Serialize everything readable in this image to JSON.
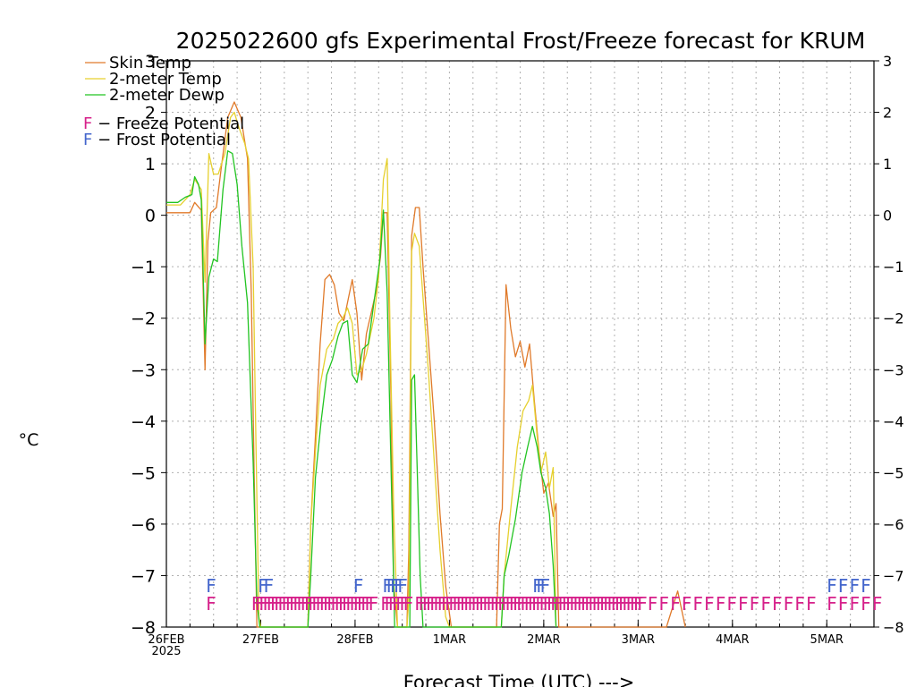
{
  "chart_data": {
    "type": "line",
    "title": "2025022600 gfs Experimental Frost/Freeze forecast for KRUM",
    "ylabel": "°C",
    "xlabel": "Forecast Time (UTC) --->",
    "xlim": [
      0,
      7.5
    ],
    "ylim": [
      -8,
      3
    ],
    "yticks": [
      3,
      2,
      1,
      0,
      -1,
      -2,
      -3,
      -4,
      -5,
      -6,
      -7,
      -8
    ],
    "ytick_labels": [
      "3",
      "2",
      "1",
      "0",
      "−1",
      "−2",
      "−3",
      "−4",
      "−5",
      "−6",
      "−7",
      "−8"
    ],
    "xticks": [
      {
        "x": 0,
        "label": "26FEB",
        "sublabel": "2025"
      },
      {
        "x": 1,
        "label": "27FEB"
      },
      {
        "x": 2,
        "label": "28FEB"
      },
      {
        "x": 3,
        "label": "1MAR"
      },
      {
        "x": 4,
        "label": "2MAR"
      },
      {
        "x": 5,
        "label": "3MAR"
      },
      {
        "x": 6,
        "label": "4MAR"
      },
      {
        "x": 7,
        "label": "5MAR"
      }
    ],
    "grid": true,
    "legend_position": "top-left",
    "series": [
      {
        "name": "Skin Temp",
        "color": "#e07a2a",
        "points": [
          [
            0.0,
            0.05
          ],
          [
            0.25,
            0.05
          ],
          [
            0.3,
            0.25
          ],
          [
            0.37,
            0.1
          ],
          [
            0.41,
            -3.0
          ],
          [
            0.44,
            -0.5
          ],
          [
            0.47,
            0.05
          ],
          [
            0.53,
            0.15
          ],
          [
            0.58,
            0.9
          ],
          [
            0.65,
            1.9
          ],
          [
            0.72,
            2.2
          ],
          [
            0.79,
            1.9
          ],
          [
            0.86,
            1.1
          ],
          [
            0.9,
            -1.5
          ],
          [
            0.93,
            -5.0
          ],
          [
            0.96,
            -8.3
          ],
          [
            1.5,
            -8.3
          ],
          [
            1.53,
            -6.0
          ],
          [
            1.58,
            -4.3
          ],
          [
            1.63,
            -2.5
          ],
          [
            1.68,
            -1.25
          ],
          [
            1.73,
            -1.15
          ],
          [
            1.78,
            -1.35
          ],
          [
            1.83,
            -1.9
          ],
          [
            1.88,
            -2.05
          ],
          [
            1.93,
            -1.6
          ],
          [
            1.97,
            -1.25
          ],
          [
            2.02,
            -1.9
          ],
          [
            2.07,
            -3.2
          ],
          [
            2.12,
            -2.3
          ],
          [
            2.17,
            -1.9
          ],
          [
            2.22,
            -1.5
          ],
          [
            2.27,
            -0.8
          ],
          [
            2.3,
            0.05
          ],
          [
            2.34,
            0.05
          ],
          [
            2.38,
            -3.5
          ],
          [
            2.41,
            -7.2
          ],
          [
            2.45,
            -8.3
          ],
          [
            2.55,
            -8.3
          ],
          [
            2.57,
            -6.5
          ],
          [
            2.6,
            -0.4
          ],
          [
            2.64,
            0.15
          ],
          [
            2.68,
            0.15
          ],
          [
            2.72,
            -1.0
          ],
          [
            2.78,
            -2.5
          ],
          [
            2.84,
            -4.0
          ],
          [
            2.9,
            -5.8
          ],
          [
            2.96,
            -7.2
          ],
          [
            3.02,
            -8.3
          ],
          [
            3.5,
            -8.3
          ],
          [
            3.53,
            -6.0
          ],
          [
            3.56,
            -5.7
          ],
          [
            3.6,
            -1.35
          ],
          [
            3.65,
            -2.2
          ],
          [
            3.7,
            -2.75
          ],
          [
            3.75,
            -2.45
          ],
          [
            3.8,
            -2.95
          ],
          [
            3.85,
            -2.5
          ],
          [
            3.9,
            -3.6
          ],
          [
            3.95,
            -4.6
          ],
          [
            4.0,
            -5.4
          ],
          [
            4.05,
            -5.2
          ],
          [
            4.1,
            -5.85
          ],
          [
            4.13,
            -5.6
          ],
          [
            4.16,
            -8.3
          ],
          [
            5.3,
            -8.3
          ],
          [
            5.42,
            -7.3
          ],
          [
            5.5,
            -8.3
          ]
        ]
      },
      {
        "name": "2-meter Temp",
        "color": "#e6d02e",
        "points": [
          [
            0.0,
            0.2
          ],
          [
            0.15,
            0.2
          ],
          [
            0.25,
            0.4
          ],
          [
            0.3,
            0.7
          ],
          [
            0.37,
            0.5
          ],
          [
            0.41,
            -1.3
          ],
          [
            0.45,
            1.2
          ],
          [
            0.5,
            0.8
          ],
          [
            0.55,
            0.8
          ],
          [
            0.62,
            1.2
          ],
          [
            0.68,
            1.9
          ],
          [
            0.72,
            2.0
          ],
          [
            0.77,
            1.7
          ],
          [
            0.83,
            1.4
          ],
          [
            0.87,
            1.1
          ],
          [
            0.92,
            -1.0
          ],
          [
            0.95,
            -4.5
          ],
          [
            0.98,
            -7.8
          ],
          [
            1.0,
            -8.3
          ],
          [
            1.5,
            -8.3
          ],
          [
            1.53,
            -6.0
          ],
          [
            1.58,
            -4.6
          ],
          [
            1.63,
            -3.3
          ],
          [
            1.7,
            -2.6
          ],
          [
            1.77,
            -2.4
          ],
          [
            1.82,
            -2.1
          ],
          [
            1.87,
            -2.0
          ],
          [
            1.92,
            -1.8
          ],
          [
            1.97,
            -2.1
          ],
          [
            2.02,
            -3.1
          ],
          [
            2.07,
            -3.0
          ],
          [
            2.12,
            -2.7
          ],
          [
            2.2,
            -2.0
          ],
          [
            2.25,
            -1.2
          ],
          [
            2.3,
            0.7
          ],
          [
            2.34,
            1.1
          ],
          [
            2.37,
            -2.2
          ],
          [
            2.41,
            -5.8
          ],
          [
            2.45,
            -8.3
          ],
          [
            2.55,
            -8.3
          ],
          [
            2.57,
            -7.5
          ],
          [
            2.6,
            -0.7
          ],
          [
            2.63,
            -0.35
          ],
          [
            2.68,
            -0.6
          ],
          [
            2.72,
            -1.6
          ],
          [
            2.78,
            -3.1
          ],
          [
            2.84,
            -4.8
          ],
          [
            2.9,
            -6.5
          ],
          [
            2.96,
            -7.8
          ],
          [
            3.0,
            -8.3
          ],
          [
            3.55,
            -8.3
          ],
          [
            3.58,
            -7.0
          ],
          [
            3.65,
            -5.7
          ],
          [
            3.72,
            -4.5
          ],
          [
            3.78,
            -3.8
          ],
          [
            3.84,
            -3.6
          ],
          [
            3.88,
            -3.3
          ],
          [
            3.93,
            -4.3
          ],
          [
            3.97,
            -5.0
          ],
          [
            4.02,
            -4.6
          ],
          [
            4.06,
            -5.3
          ],
          [
            4.1,
            -4.9
          ],
          [
            4.13,
            -8.3
          ]
        ]
      },
      {
        "name": "2-meter Dewp",
        "color": "#22c422",
        "points": [
          [
            0.0,
            0.25
          ],
          [
            0.12,
            0.25
          ],
          [
            0.2,
            0.35
          ],
          [
            0.27,
            0.4
          ],
          [
            0.3,
            0.75
          ],
          [
            0.34,
            0.6
          ],
          [
            0.37,
            0.3
          ],
          [
            0.41,
            -2.5
          ],
          [
            0.45,
            -1.2
          ],
          [
            0.5,
            -0.85
          ],
          [
            0.54,
            -0.9
          ],
          [
            0.6,
            0.5
          ],
          [
            0.65,
            1.25
          ],
          [
            0.7,
            1.2
          ],
          [
            0.75,
            0.6
          ],
          [
            0.8,
            -0.6
          ],
          [
            0.86,
            -1.7
          ],
          [
            0.92,
            -4.8
          ],
          [
            0.96,
            -7.5
          ],
          [
            0.99,
            -8.3
          ],
          [
            1.5,
            -8.3
          ],
          [
            1.53,
            -7.0
          ],
          [
            1.58,
            -5.1
          ],
          [
            1.64,
            -4.0
          ],
          [
            1.7,
            -3.1
          ],
          [
            1.76,
            -2.8
          ],
          [
            1.82,
            -2.35
          ],
          [
            1.87,
            -2.1
          ],
          [
            1.92,
            -2.05
          ],
          [
            1.97,
            -3.1
          ],
          [
            2.02,
            -3.25
          ],
          [
            2.08,
            -2.6
          ],
          [
            2.14,
            -2.5
          ],
          [
            2.2,
            -1.7
          ],
          [
            2.26,
            -0.9
          ],
          [
            2.3,
            0.1
          ],
          [
            2.34,
            -1.5
          ],
          [
            2.38,
            -4.8
          ],
          [
            2.42,
            -8.3
          ],
          [
            2.55,
            -8.3
          ],
          [
            2.58,
            -8.3
          ],
          [
            2.6,
            -3.2
          ],
          [
            2.63,
            -3.1
          ],
          [
            2.66,
            -5.0
          ],
          [
            2.69,
            -7.0
          ],
          [
            2.72,
            -8.3
          ],
          [
            3.55,
            -8.3
          ],
          [
            3.58,
            -7.0
          ],
          [
            3.63,
            -6.6
          ],
          [
            3.7,
            -5.9
          ],
          [
            3.77,
            -5.0
          ],
          [
            3.83,
            -4.5
          ],
          [
            3.88,
            -4.1
          ],
          [
            3.93,
            -4.5
          ],
          [
            3.97,
            -5.0
          ],
          [
            4.02,
            -5.3
          ],
          [
            4.06,
            -5.8
          ],
          [
            4.1,
            -6.8
          ],
          [
            4.13,
            -8.3
          ]
        ]
      }
    ],
    "freeze_potential": {
      "label": "F − Freeze Potential",
      "marker": "F",
      "color": "#d6208a",
      "y": -7.55,
      "x": [
        0.42,
        0.9,
        0.94,
        0.98,
        1.02,
        1.06,
        1.1,
        1.14,
        1.18,
        1.22,
        1.26,
        1.3,
        1.34,
        1.38,
        1.42,
        1.46,
        1.5,
        1.54,
        1.58,
        1.62,
        1.66,
        1.7,
        1.74,
        1.78,
        1.82,
        1.86,
        1.9,
        1.94,
        1.98,
        2.02,
        2.06,
        2.1,
        2.14,
        2.27,
        2.31,
        2.35,
        2.39,
        2.43,
        2.47,
        2.51,
        2.63,
        2.67,
        2.71,
        2.75,
        2.79,
        2.83,
        2.87,
        2.91,
        2.95,
        2.99,
        3.03,
        3.07,
        3.11,
        3.15,
        3.19,
        3.23,
        3.27,
        3.31,
        3.35,
        3.39,
        3.43,
        3.47,
        3.51,
        3.55,
        3.59,
        3.63,
        3.67,
        3.71,
        3.75,
        3.79,
        3.83,
        3.87,
        3.91,
        3.95,
        3.99,
        4.03,
        4.07,
        4.11,
        4.15,
        4.19,
        4.23,
        4.27,
        4.31,
        4.35,
        4.39,
        4.43,
        4.47,
        4.51,
        4.55,
        4.59,
        4.63,
        4.67,
        4.71,
        4.75,
        4.79,
        4.83,
        4.87,
        4.91,
        4.95,
        4.99,
        5.1,
        5.22,
        5.34,
        5.46,
        5.58,
        5.7,
        5.82,
        5.94,
        6.06,
        6.18,
        6.3,
        6.42,
        6.54,
        6.66,
        6.78,
        7.0,
        7.12,
        7.24,
        7.36,
        7.48
      ]
    },
    "frost_potential": {
      "label": "F − Frost Potential",
      "marker": "F",
      "color": "#4466cc",
      "y": -7.2,
      "x": [
        0.42,
        0.97,
        1.03,
        1.98,
        2.29,
        2.33,
        2.37,
        2.41,
        2.45,
        3.88,
        3.92,
        3.96,
        7.0,
        7.12,
        7.24,
        7.36
      ]
    }
  }
}
